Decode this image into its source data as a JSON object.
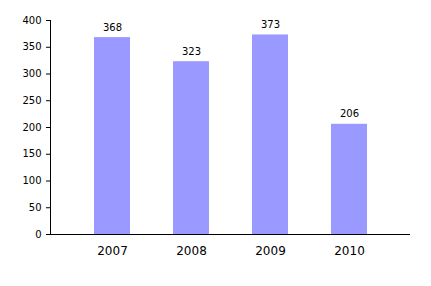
{
  "chart_data": {
    "type": "bar",
    "categories": [
      "2007",
      "2008",
      "2009",
      "2010"
    ],
    "values": [
      368,
      323,
      373,
      206
    ],
    "color": "#9999ff",
    "ylim": [
      0,
      400
    ],
    "yticks": [
      0,
      50,
      100,
      150,
      200,
      250,
      300,
      350,
      400
    ],
    "grid": false,
    "data_labels": true
  }
}
